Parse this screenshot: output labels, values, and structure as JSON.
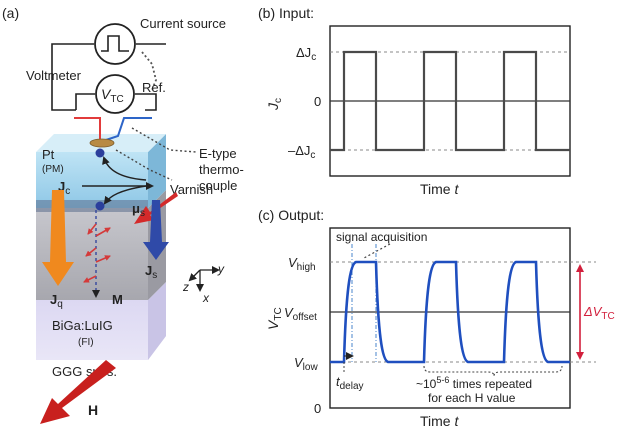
{
  "panel_a": {
    "label": "(a)",
    "current_source": "Current source",
    "voltmeter": "Voltmeter",
    "vtc_symbol": "V",
    "vtc_sub": "TC",
    "ref": "Ref.",
    "pt": "Pt",
    "pm": "(PM)",
    "etype_line1": "E-type",
    "etype_line2": "thermo-",
    "etype_line3": "couple",
    "varnish": "Varnish",
    "jc_symbol": "J",
    "jc_sub": "c",
    "mus_symbol": "μ",
    "mus_sub": "s",
    "js_symbol": "J",
    "js_sub": "s",
    "jq_symbol": "J",
    "jq_sub": "q",
    "m_symbol": "M",
    "axis_x": "x",
    "axis_y": "y",
    "axis_z": "z",
    "big_label": "BiGa:LuIG",
    "fi": "(FI)",
    "ggg": "GGG subs.",
    "h_symbol": "H"
  },
  "panel_b": {
    "label": "(b) Input:",
    "ylabel_symbol": "J",
    "ylabel_sub": "c",
    "tick_pos_prefix": "ΔJ",
    "tick_pos_sub": "c",
    "tick_zero": "0",
    "tick_neg_prefix": "–ΔJ",
    "tick_neg_sub": "c",
    "xlabel": "Time ",
    "xlabel_var": "t"
  },
  "panel_c": {
    "label": "(c) Output:",
    "signal_acquisition": "signal acquisition",
    "vhigh_symbol": "V",
    "vhigh_sub": "high",
    "voffset_symbol": "V",
    "voffset_sub": "offset",
    "vlow_symbol": "V",
    "vlow_sub": "low",
    "tick_zero": "0",
    "ylabel_symbol": "V",
    "ylabel_sub": "TC",
    "delta_prefix": "ΔV",
    "delta_sub": "TC",
    "tdelay_symbol": "t",
    "tdelay_sub": "delay",
    "repeat_prefix": "~10",
    "repeat_sup": "5-6",
    "repeat_suffix": " times repeated",
    "repeat_line2": "for each H value",
    "xlabel": "Time ",
    "xlabel_var": "t"
  },
  "colors": {
    "trace_blue": "#1f4fbf",
    "input_gray": "#4a4a4a",
    "delta_red": "#d21f3c",
    "h_arrow": "#c8201e",
    "jq_arrow": "#f0891e",
    "js_arrow": "#2f4aa8",
    "pt_layer": "#a9d6ec",
    "garnet": "#b8b8bf",
    "ggg": "#d7d3ee"
  },
  "icons": {
    "current_source": "square-pulse-source-icon",
    "voltmeter": "voltmeter-circle-icon"
  }
}
